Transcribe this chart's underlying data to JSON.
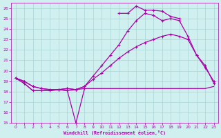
{
  "background_color": "#d0efef",
  "grid_color": "#aad4d4",
  "line_color": "#aa00aa",
  "xlabel": "Windchill (Refroidissement éolien,°C)",
  "xlim": [
    -0.5,
    23.5
  ],
  "ylim": [
    15,
    26.5
  ],
  "yticks": [
    15,
    16,
    17,
    18,
    19,
    20,
    21,
    22,
    23,
    24,
    25,
    26
  ],
  "xticks": [
    0,
    1,
    2,
    3,
    4,
    5,
    6,
    7,
    8,
    9,
    10,
    11,
    12,
    13,
    14,
    15,
    16,
    17,
    18,
    19,
    20,
    21,
    22,
    23
  ],
  "line1_x": [
    0,
    1,
    2,
    3,
    4,
    5,
    6,
    7,
    8
  ],
  "line1_y": [
    19.3,
    18.8,
    18.1,
    18.1,
    18.1,
    18.2,
    18.1,
    15.0,
    18.3
  ],
  "line2_x": [
    0,
    1,
    2,
    3,
    4,
    5,
    6,
    7,
    8,
    9,
    10,
    11,
    12,
    13,
    14,
    15,
    16,
    17,
    18,
    19,
    20,
    21,
    22,
    23
  ],
  "line2_y": [
    19.3,
    18.8,
    18.1,
    18.1,
    18.1,
    18.2,
    18.1,
    18.2,
    18.3,
    18.3,
    18.3,
    18.3,
    18.3,
    18.3,
    18.3,
    18.3,
    18.3,
    18.3,
    18.3,
    18.3,
    18.3,
    18.3,
    18.3,
    18.5
  ],
  "line3_x": [
    0,
    1,
    2,
    3,
    4,
    5,
    6,
    7,
    8,
    9,
    10,
    11,
    12,
    13,
    14,
    15,
    16,
    17,
    18,
    19,
    20,
    21,
    22,
    23
  ],
  "line3_y": [
    19.3,
    19.0,
    18.5,
    18.3,
    18.2,
    18.2,
    18.3,
    18.2,
    18.5,
    19.2,
    19.8,
    20.5,
    21.2,
    21.8,
    22.3,
    22.7,
    23.0,
    23.3,
    23.5,
    23.3,
    23.0,
    21.5,
    20.5,
    18.8
  ],
  "line4_x": [
    0,
    1,
    2,
    3,
    4,
    5,
    6,
    7,
    8,
    9,
    10,
    11,
    12,
    13,
    14,
    15,
    16,
    17,
    18,
    19,
    20,
    21,
    22,
    23
  ],
  "line4_y": [
    19.3,
    19.0,
    18.5,
    18.3,
    18.2,
    18.2,
    18.3,
    18.2,
    18.5,
    19.5,
    20.5,
    21.5,
    22.5,
    23.8,
    24.8,
    25.5,
    25.3,
    24.8,
    25.0,
    24.8,
    23.3,
    21.5,
    20.3,
    19.0
  ],
  "line5_x": [
    12,
    13,
    14,
    15,
    16,
    17,
    18,
    19
  ],
  "line5_y": [
    25.5,
    25.5,
    26.2,
    25.8,
    25.8,
    25.7,
    25.2,
    25.0
  ]
}
